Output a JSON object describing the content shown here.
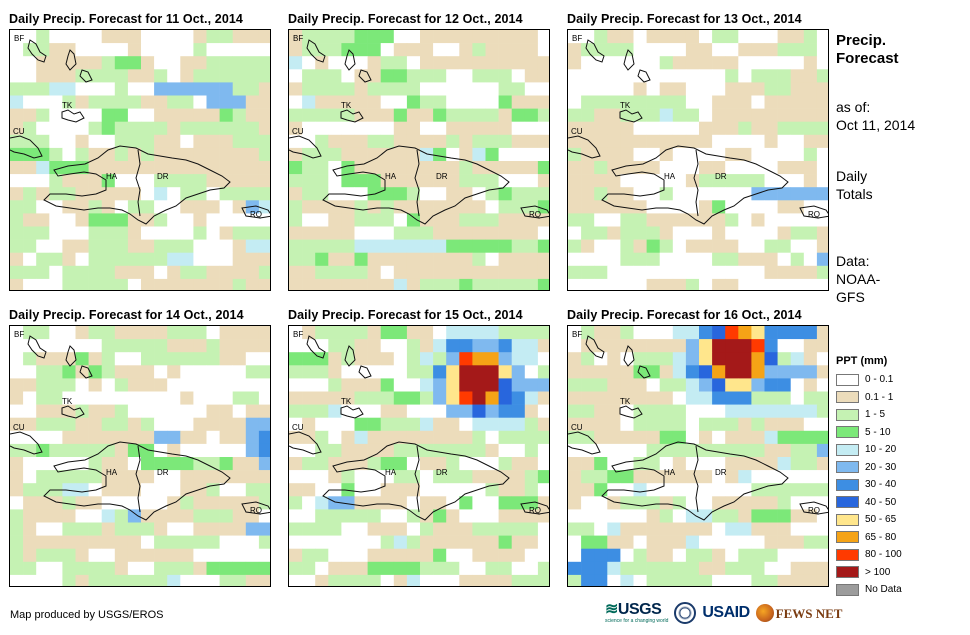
{
  "panels": [
    {
      "title": "Daily Precip. Forecast for 11 Oct., 2014",
      "scenario": "d11"
    },
    {
      "title": "Daily Precip. Forecast for 12 Oct., 2014",
      "scenario": "d12"
    },
    {
      "title": "Daily Precip. Forecast for 13 Oct., 2014",
      "scenario": "d13"
    },
    {
      "title": "Daily Precip. Forecast for 14 Oct., 2014",
      "scenario": "d14"
    },
    {
      "title": "Daily Precip. Forecast for 15 Oct., 2014",
      "scenario": "d15"
    },
    {
      "title": "Daily Precip. Forecast for 16 Oct., 2014",
      "scenario": "d16"
    }
  ],
  "map_labels": {
    "bf": "BF",
    "tk": "TK",
    "cu": "CU",
    "ha": "HA",
    "dr": "DR",
    "rq": "RQ"
  },
  "sidebar": {
    "heading_line1": "Precip.",
    "heading_line2": "Forecast",
    "asof_line1": "as of:",
    "asof_line2": "Oct 11, 2014",
    "totals_line1": "Daily",
    "totals_line2": "Totals",
    "data_line1": "Data:",
    "data_line2": "NOAA-",
    "data_line3": "GFS"
  },
  "legend": {
    "title": "PPT (mm)",
    "items": [
      {
        "label": "0 - 0.1",
        "color": "#ffffff"
      },
      {
        "label": "0.1 - 1",
        "color": "#ecdcbb"
      },
      {
        "label": "1 - 5",
        "color": "#c5f2b3"
      },
      {
        "label": "5 - 10",
        "color": "#7ce879"
      },
      {
        "label": "10 - 20",
        "color": "#c4ecf3"
      },
      {
        "label": "20 - 30",
        "color": "#7fb9ef"
      },
      {
        "label": "30 - 40",
        "color": "#3d8ee3"
      },
      {
        "label": "40 - 50",
        "color": "#2866dd"
      },
      {
        "label": "50 - 65",
        "color": "#ffe68c"
      },
      {
        "label": "65 - 80",
        "color": "#f5a316"
      },
      {
        "label": "80 - 100",
        "color": "#ff3a00"
      },
      {
        "label": "> 100",
        "color": "#a41919"
      },
      {
        "label": "No Data",
        "color": "#9c9c9c"
      }
    ]
  },
  "footer": {
    "credit": "Map produced by USGS/EROS",
    "logo_usgs": "USGS",
    "logo_usgs_tagline": "science for a changing world",
    "logo_usaid": "USAID",
    "logo_fews": "FEWS NET"
  }
}
